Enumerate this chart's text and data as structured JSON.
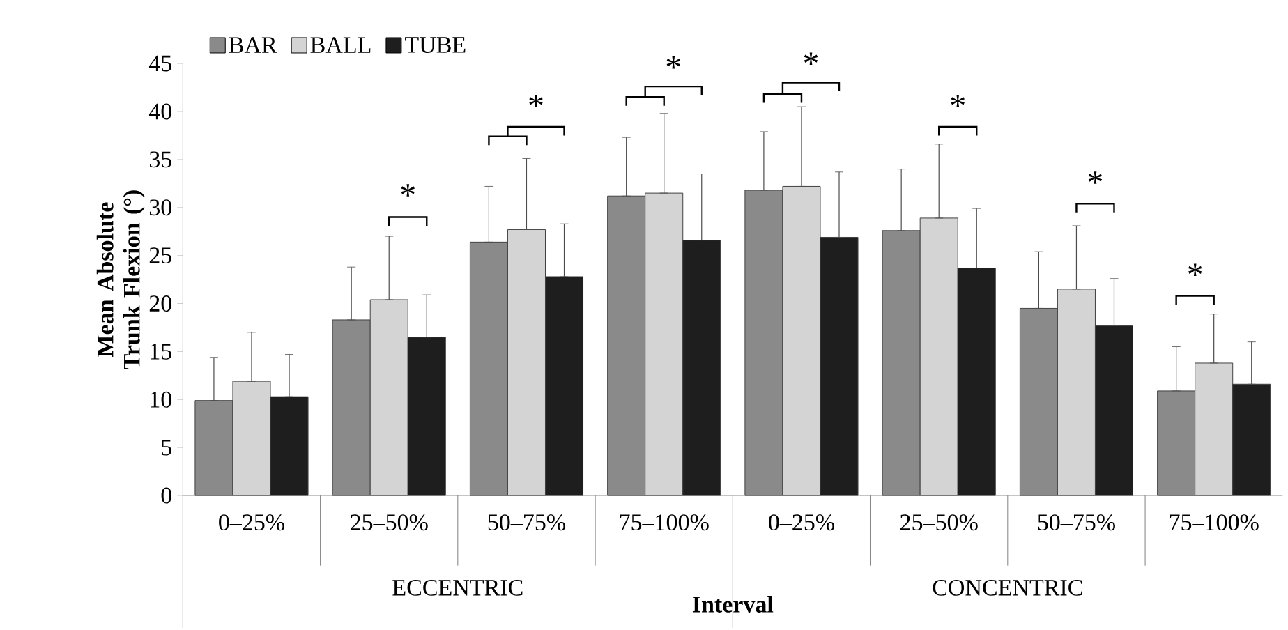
{
  "chart_data": {
    "type": "bar",
    "xlabel": "Interval",
    "ylabel": "Mean Absolute Trunk Flexion (°)",
    "categories": [
      "0–25%",
      "25–50%",
      "50–75%",
      "75–100%",
      "0–25%",
      "25–50%",
      "50–75%",
      "75–100%"
    ],
    "series": [
      {
        "name": "BAR",
        "color": "#8a8a8a",
        "values": [
          9.9,
          18.3,
          26.4,
          31.2,
          31.8,
          27.6,
          19.5,
          10.9
        ],
        "errors": [
          [
            9.9,
            14.4
          ],
          [
            18.3,
            23.8
          ],
          [
            26.4,
            32.2
          ],
          [
            31.2,
            37.3
          ],
          [
            31.8,
            37.9
          ],
          [
            27.6,
            34.0
          ],
          [
            19.5,
            25.4
          ],
          [
            10.9,
            15.5
          ]
        ]
      },
      {
        "name": "BALL",
        "color": "#d4d4d4",
        "values": [
          11.9,
          20.4,
          27.7,
          31.5,
          32.2,
          28.9,
          21.5,
          13.8
        ],
        "errors": [
          [
            11.9,
            17.0
          ],
          [
            20.4,
            27.0
          ],
          [
            27.7,
            35.1
          ],
          [
            31.5,
            39.8
          ],
          [
            32.2,
            40.5
          ],
          [
            28.9,
            36.6
          ],
          [
            21.5,
            28.1
          ],
          [
            13.8,
            18.9
          ]
        ]
      },
      {
        "name": "TUBE",
        "color": "#1e1e1e",
        "values": [
          10.3,
          16.5,
          22.8,
          26.6,
          26.9,
          23.7,
          17.7,
          11.6
        ],
        "errors": [
          [
            10.3,
            14.7
          ],
          [
            16.5,
            20.9
          ],
          [
            22.8,
            28.3
          ],
          [
            26.6,
            33.5
          ],
          [
            26.9,
            33.7
          ],
          [
            23.7,
            29.9
          ],
          [
            17.7,
            22.6
          ],
          [
            11.6,
            16.0
          ]
        ]
      }
    ],
    "ylim": [
      0,
      45
    ],
    "yticks": [
      0,
      5,
      10,
      15,
      20,
      25,
      30,
      35,
      40,
      45
    ],
    "legend": "top left",
    "grid": false,
    "annotations": [
      "ECCENTRIC",
      "CONCENTRIC",
      "*",
      "*",
      "*",
      "*",
      "*",
      "*",
      "*"
    ]
  }
}
